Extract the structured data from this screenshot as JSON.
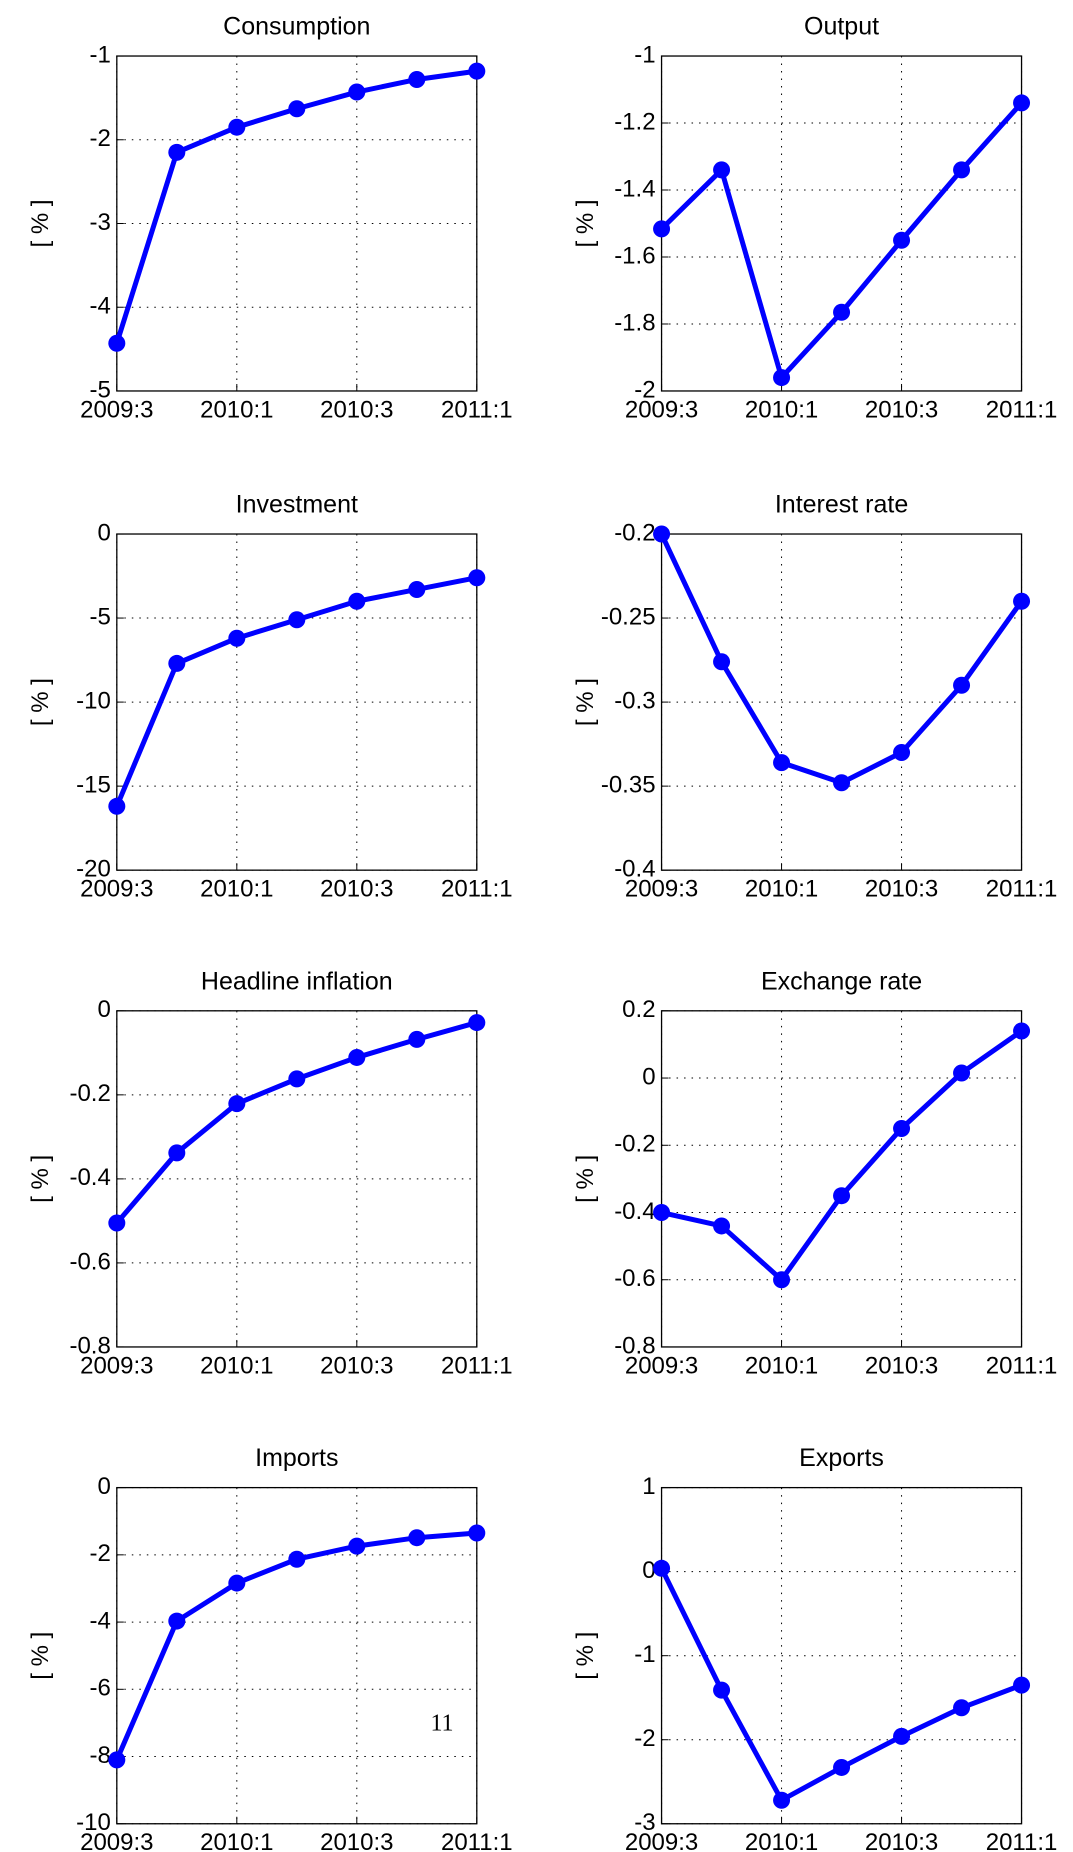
{
  "chart_data": [
    {
      "type": "line",
      "title": "Consumption",
      "ylabel": "[ % ]",
      "color": "#0000ff",
      "grid": true,
      "categories": [
        "2009:3",
        null,
        "2010:1",
        null,
        "2010:3",
        null,
        "2011:1"
      ],
      "values": [
        -4.43,
        -2.15,
        -1.85,
        -1.63,
        -1.43,
        -1.28,
        -1.18
      ],
      "ylim": [
        -5,
        -1
      ],
      "yticks": [
        -5,
        -4,
        -3,
        -2,
        -1
      ]
    },
    {
      "type": "line",
      "title": "Output",
      "ylabel": "[ % ]",
      "color": "#0000ff",
      "grid": true,
      "categories": [
        "2009:3",
        null,
        "2010:1",
        null,
        "2010:3",
        null,
        "2011:1"
      ],
      "values": [
        -1.516,
        -1.34,
        -1.96,
        -1.765,
        -1.55,
        -1.34,
        -1.14
      ],
      "ylim": [
        -2,
        -1
      ],
      "yticks": [
        -2,
        -1.8,
        -1.6,
        -1.4,
        -1.2,
        -1
      ]
    },
    {
      "type": "line",
      "title": "Investment",
      "ylabel": "[ % ]",
      "color": "#0000ff",
      "grid": true,
      "categories": [
        "2009:3",
        null,
        "2010:1",
        null,
        "2010:3",
        null,
        "2011:1"
      ],
      "values": [
        -16.2,
        -7.7,
        -6.2,
        -5.1,
        -4.0,
        -3.3,
        -2.6
      ],
      "ylim": [
        -20,
        0
      ],
      "yticks": [
        -20,
        -15,
        -10,
        -5,
        0
      ]
    },
    {
      "type": "line",
      "title": "Interest rate",
      "ylabel": "[ % ]",
      "color": "#0000ff",
      "grid": true,
      "categories": [
        "2009:3",
        null,
        "2010:1",
        null,
        "2010:3",
        null,
        "2011:1"
      ],
      "values": [
        -0.2,
        -0.276,
        -0.336,
        -0.348,
        -0.33,
        -0.29,
        -0.24
      ],
      "ylim": [
        -0.4,
        -0.2
      ],
      "yticks": [
        -0.4,
        -0.35,
        -0.3,
        -0.25,
        -0.2
      ]
    },
    {
      "type": "line",
      "title": "Headline inflation",
      "ylabel": "[ % ]",
      "color": "#0000ff",
      "grid": true,
      "categories": [
        "2009:3",
        null,
        "2010:1",
        null,
        "2010:3",
        null,
        "2011:1"
      ],
      "values": [
        -0.505,
        -0.338,
        -0.221,
        -0.162,
        -0.111,
        -0.068,
        -0.028
      ],
      "ylim": [
        -0.8,
        0
      ],
      "yticks": [
        -0.8,
        -0.6,
        -0.4,
        -0.2,
        0
      ]
    },
    {
      "type": "line",
      "title": "Exchange rate",
      "ylabel": "[ % ]",
      "color": "#0000ff",
      "grid": true,
      "categories": [
        "2009:3",
        null,
        "2010:1",
        null,
        "2010:3",
        null,
        "2011:1"
      ],
      "values": [
        -0.4,
        -0.44,
        -0.6,
        -0.35,
        -0.15,
        0.015,
        0.14
      ],
      "ylim": [
        -0.8,
        0.2
      ],
      "yticks": [
        -0.8,
        -0.6,
        -0.4,
        -0.2,
        0,
        0.2
      ]
    },
    {
      "type": "line",
      "title": "Imports",
      "ylabel": "[ % ]",
      "color": "#0000ff",
      "grid": true,
      "categories": [
        "2009:3",
        null,
        "2010:1",
        null,
        "2010:3",
        null,
        "2011:1"
      ],
      "values": [
        -8.1,
        -3.97,
        -2.84,
        -2.13,
        -1.74,
        -1.49,
        -1.35
      ],
      "ylim": [
        -10,
        0
      ],
      "yticks": [
        -10,
        -8,
        -6,
        -4,
        -2,
        0
      ]
    },
    {
      "type": "line",
      "title": "Exports",
      "ylabel": "[ % ]",
      "color": "#0000ff",
      "grid": true,
      "categories": [
        "2009:3",
        null,
        "2010:1",
        null,
        "2010:3",
        null,
        "2011:1"
      ],
      "values": [
        0.04,
        -1.41,
        -2.72,
        -2.33,
        -1.96,
        -1.62,
        -1.35
      ],
      "ylim": [
        -3,
        1
      ],
      "yticks": [
        -3,
        -2,
        -1,
        0,
        1
      ]
    }
  ],
  "page_number": "11"
}
